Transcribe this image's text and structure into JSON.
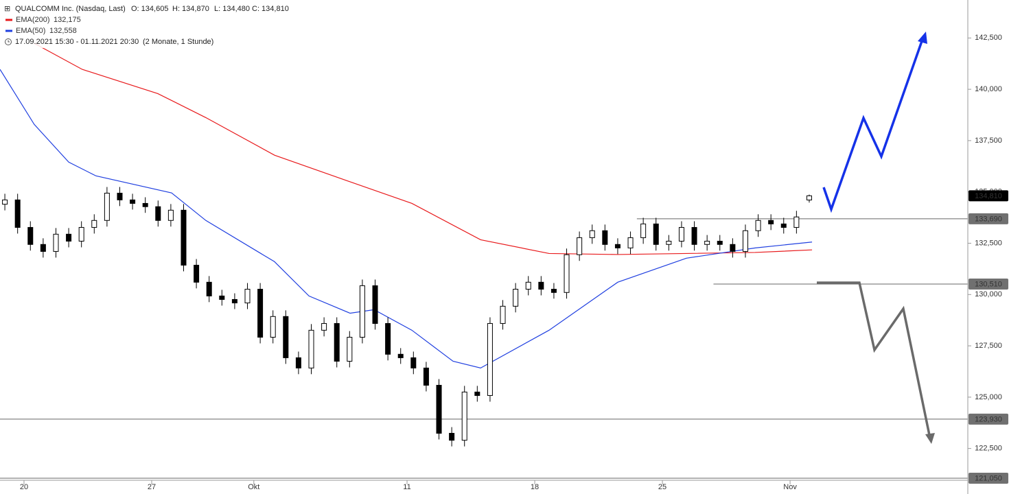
{
  "chart_data": {
    "type": "candlestick",
    "title": "QUALCOMM Inc. (Nasdaq, Last)",
    "quote": [
      "O: 134,605",
      "H: 134,870",
      "L: 134,480",
      "C: 134,810"
    ],
    "range_text": "17.09.2021 15:30 - 01.11.2021 20:30",
    "range_note": "(2 Monate, 1 Stunde)",
    "up_color": "#ffffff",
    "down_color": "#000000",
    "x": [
      -0.75,
      -0.25,
      0.25,
      0.75,
      1.25,
      1.75,
      2.25,
      2.75,
      3.25,
      3.75,
      4.25,
      4.75,
      5.25,
      5.75,
      6.25,
      6.75,
      7.25,
      7.75,
      8.25,
      8.75,
      9.25,
      9.75,
      10.25,
      10.75,
      11.25,
      11.75,
      12.25,
      12.75,
      13.25,
      13.75,
      14.25,
      14.75,
      15.25,
      15.75,
      16.25,
      16.75,
      17.25,
      17.75,
      18.25,
      18.75,
      19.25,
      19.75,
      20.25,
      20.75,
      21.25,
      21.75,
      22.25,
      22.75,
      23.25,
      23.75,
      24.25,
      24.75,
      25.25,
      25.75,
      26.25,
      26.75,
      27.25,
      27.75,
      28.25,
      28.75,
      29.25,
      29.75,
      30.25,
      30.75
    ],
    "open": [
      134.4,
      134.61,
      133.27,
      132.44,
      132.1,
      132.94,
      132.6,
      133.27,
      133.61,
      134.94,
      134.61,
      134.44,
      134.28,
      133.61,
      134.11,
      131.43,
      130.6,
      129.93,
      129.76,
      129.59,
      130.26,
      127.92,
      128.93,
      126.92,
      126.42,
      128.26,
      128.59,
      126.75,
      127.92,
      130.43,
      128.59,
      127.09,
      126.92,
      126.42,
      125.58,
      123.24,
      122.9,
      125.25,
      125.08,
      128.59,
      129.43,
      130.26,
      130.6,
      130.26,
      130.1,
      131.94,
      132.77,
      133.11,
      132.44,
      132.27,
      132.77,
      133.44,
      132.44,
      132.6,
      133.27,
      132.44,
      132.6,
      132.44,
      132.1,
      133.11,
      133.61,
      133.44,
      133.27,
      134.605
    ],
    "high": [
      134.91,
      134.91,
      133.57,
      132.74,
      133.24,
      133.24,
      133.57,
      133.91,
      135.24,
      135.24,
      134.91,
      134.74,
      134.58,
      134.41,
      134.41,
      131.73,
      130.9,
      130.23,
      130.06,
      130.56,
      130.56,
      129.23,
      129.23,
      127.22,
      128.56,
      128.89,
      128.89,
      128.22,
      130.73,
      130.73,
      128.89,
      127.39,
      127.22,
      126.72,
      125.88,
      123.54,
      125.55,
      125.55,
      128.89,
      129.73,
      130.56,
      130.9,
      130.9,
      130.56,
      132.24,
      133.07,
      133.41,
      133.41,
      132.74,
      133.07,
      133.74,
      133.74,
      132.9,
      133.57,
      133.57,
      132.9,
      132.9,
      132.74,
      133.41,
      133.91,
      133.91,
      133.74,
      134.08,
      134.87
    ],
    "low": [
      134.1,
      132.97,
      132.14,
      131.8,
      131.8,
      132.3,
      132.3,
      132.97,
      133.31,
      134.31,
      134.14,
      133.98,
      133.31,
      133.31,
      131.13,
      130.3,
      129.63,
      129.46,
      129.29,
      129.29,
      127.62,
      127.62,
      126.62,
      126.12,
      126.12,
      127.96,
      126.45,
      126.45,
      127.62,
      128.29,
      126.79,
      126.62,
      126.12,
      125.28,
      122.94,
      122.6,
      122.6,
      124.78,
      124.78,
      128.29,
      129.13,
      129.96,
      129.96,
      129.8,
      129.8,
      131.64,
      132.47,
      132.14,
      131.97,
      131.97,
      132.47,
      132.14,
      132.14,
      132.3,
      132.14,
      132.14,
      132.14,
      131.8,
      131.8,
      132.81,
      133.14,
      132.97,
      132.97,
      134.48
    ],
    "close": [
      134.61,
      133.27,
      132.44,
      132.1,
      132.94,
      132.6,
      133.27,
      133.61,
      134.94,
      134.61,
      134.44,
      134.28,
      133.61,
      134.11,
      131.43,
      130.6,
      129.93,
      129.76,
      129.59,
      130.26,
      127.92,
      128.93,
      126.92,
      126.42,
      128.26,
      128.59,
      126.75,
      127.92,
      130.43,
      128.59,
      127.09,
      126.92,
      126.42,
      125.58,
      123.24,
      122.9,
      125.25,
      125.08,
      128.59,
      129.43,
      130.26,
      130.6,
      130.26,
      130.1,
      131.94,
      132.77,
      133.11,
      132.44,
      132.27,
      132.77,
      133.44,
      132.44,
      132.6,
      133.27,
      132.44,
      132.6,
      132.44,
      132.1,
      133.11,
      133.61,
      133.44,
      133.27,
      133.78,
      134.81
    ],
    "lines": [
      {
        "name": "EMA(200)",
        "value_label": "132,175",
        "color": "#e8191b",
        "x": [
          0.4,
          2.28,
          5.24,
          7.12,
          9.81,
          12.5,
          15.19,
          17.88,
          20.56,
          23.25,
          25.94,
          28.63,
          30.86
        ],
        "values": [
          142.24,
          140.97,
          139.79,
          138.62,
          136.79,
          135.61,
          134.44,
          132.67,
          132.0,
          131.95,
          132.0,
          132.05,
          132.175
        ]
      },
      {
        "name": "EMA(50)",
        "value_label": "132,558",
        "color": "#1f3fe0",
        "x": [
          -0.94,
          0.4,
          1.75,
          2.82,
          5.78,
          7.12,
          9.81,
          11.16,
          12.77,
          13.71,
          15.19,
          16.8,
          17.88,
          20.56,
          23.25,
          25.94,
          28.63,
          30.86
        ],
        "values": [
          140.97,
          138.29,
          136.45,
          135.78,
          134.95,
          133.61,
          131.6,
          129.93,
          129.09,
          129.26,
          128.26,
          126.75,
          126.42,
          128.26,
          130.6,
          131.77,
          132.27,
          132.558
        ]
      }
    ],
    "last_price": {
      "value": 134.81,
      "label": "134,810"
    },
    "levels": [
      {
        "value": 133.69,
        "label": "133,690",
        "x_start": 24.0
      },
      {
        "value": 130.51,
        "label": "130,510",
        "x_start": 27.0
      },
      {
        "value": 123.93,
        "label": "123,930"
      },
      {
        "value": 121.05,
        "label": "121,050"
      }
    ],
    "xlim": [
      -0.94,
      36.96
    ],
    "xticks": [
      {
        "value": 0,
        "label": "20"
      },
      {
        "value": 5,
        "label": "27"
      },
      {
        "value": 9,
        "label": "Okt"
      },
      {
        "value": 15,
        "label": "11"
      },
      {
        "value": 20,
        "label": "18"
      },
      {
        "value": 25,
        "label": "25"
      },
      {
        "value": 30,
        "label": "Nov"
      }
    ],
    "ylim": [
      120.95,
      144.35
    ],
    "yticks": [
      {
        "value": 122.5,
        "label": "122,500"
      },
      {
        "value": 125,
        "label": "125,000"
      },
      {
        "value": 127.5,
        "label": "127,500"
      },
      {
        "value": 130,
        "label": "130,000"
      },
      {
        "value": 132.5,
        "label": "132,500"
      },
      {
        "value": 135,
        "label": "135,000"
      },
      {
        "value": 137.5,
        "label": "137,500"
      },
      {
        "value": 140,
        "label": "140,000"
      },
      {
        "value": 142.5,
        "label": "142,500"
      }
    ]
  }
}
